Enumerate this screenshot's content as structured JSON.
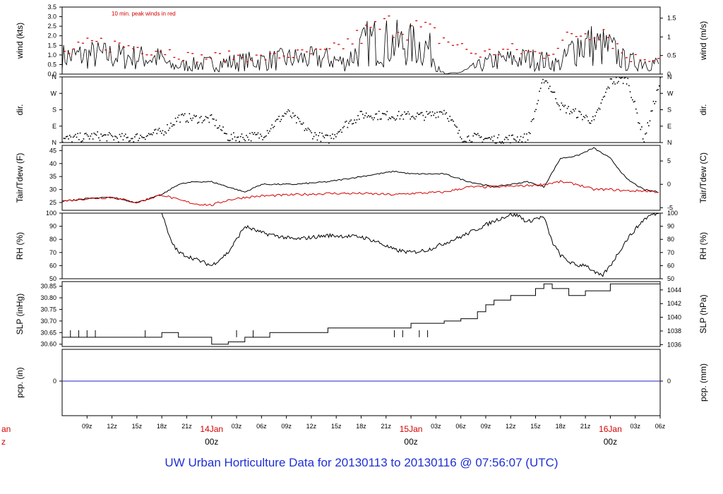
{
  "caption": "UW Urban Horticulture Data for 20130113  to  20130116 @ 07:56:07  (UTC)",
  "colors": {
    "black": "#000000",
    "red": "#d40000",
    "blue": "#2222cc",
    "axis": "#000000"
  },
  "x_axis": {
    "start_hours": 6,
    "end_hours": 78,
    "hour_ticks": [
      "09z",
      "12z",
      "15z",
      "18z",
      "21z",
      "03z",
      "06z",
      "09z",
      "12z",
      "15z",
      "18z",
      "21z",
      "03z",
      "06z",
      "09z",
      "12z",
      "15z",
      "18z",
      "21z",
      "03z",
      "06z"
    ],
    "hour_tick_values": [
      9,
      12,
      15,
      18,
      21,
      27,
      30,
      33,
      36,
      39,
      42,
      45,
      51,
      54,
      57,
      60,
      63,
      66,
      69,
      75,
      78
    ],
    "date_ticks": [
      {
        "date": "14Jan",
        "time": "00z",
        "value": 24
      },
      {
        "date": "15Jan",
        "time": "00z",
        "value": 48
      },
      {
        "date": "16Jan",
        "time": "00z",
        "value": 72
      }
    ],
    "partial_left_label": {
      "date": "an",
      "time": "z"
    }
  },
  "chart_data": [
    {
      "type": "line",
      "panel": "wind",
      "ylabel_left": "wind (kts)",
      "ylabel_right": "wind (m/s)",
      "annotation": "10 min. peak winds in red",
      "ylim": [
        0,
        3.5
      ],
      "left_ticks": [
        "0.0",
        "0.5",
        "1.0",
        "1.5",
        "2.0",
        "2.5",
        "3.0",
        "3.5"
      ],
      "right_ticks": [
        "0",
        "0.5",
        "1",
        "1.5"
      ],
      "right_tick_values_kts": [
        0,
        0.97,
        1.94,
        2.92
      ],
      "series": [
        {
          "name": "wind",
          "color": "#000000",
          "x": [
            6,
            10,
            14,
            18,
            19,
            22,
            26,
            30,
            34,
            38,
            40,
            43,
            46,
            50,
            52,
            54,
            58,
            62,
            64,
            66,
            68,
            70,
            72,
            74,
            76,
            78
          ],
          "values": [
            0.9,
            1.0,
            0.9,
            0.8,
            0.4,
            0.5,
            0.6,
            0.7,
            0.8,
            0.8,
            0.6,
            1.7,
            1.6,
            1.4,
            0.0,
            0.1,
            0.7,
            0.8,
            0.7,
            0.5,
            1.6,
            1.5,
            1.3,
            0.6,
            0.7,
            0.5
          ]
        },
        {
          "name": "peak",
          "color": "#d40000",
          "x": [
            6,
            10,
            14,
            18,
            22,
            26,
            30,
            34,
            38,
            43,
            46,
            50,
            56,
            60,
            64,
            68,
            71,
            74,
            78
          ],
          "values": [
            1.2,
            1.9,
            1.7,
            1.5,
            1.0,
            1.1,
            1.0,
            1.2,
            1.3,
            2.6,
            3.1,
            2.6,
            1.2,
            1.5,
            1.2,
            2.5,
            2.9,
            1.0,
            1.0
          ]
        }
      ]
    },
    {
      "type": "scatter",
      "panel": "direction",
      "ylabel_left": "dir.",
      "ylabel_right": "dir.",
      "ylim": [
        0,
        360
      ],
      "ticks": [
        "N",
        "E",
        "S",
        "W",
        "N"
      ],
      "tick_values": [
        0,
        90,
        180,
        270,
        360
      ]
    },
    {
      "type": "line",
      "panel": "temperature",
      "ylabel_left": "Tair/Tdew (F)",
      "ylabel_right": "Tair/Tdew (C)",
      "ylim": [
        22,
        47
      ],
      "left_ticks": [
        "25",
        "30",
        "35",
        "40",
        "45"
      ],
      "right_ticks": [
        "-5",
        "0",
        "5"
      ],
      "right_tick_values_f": [
        23,
        32,
        41
      ],
      "series": [
        {
          "name": "Tair",
          "color": "#000000",
          "x": [
            6,
            9,
            12,
            15,
            18,
            20,
            22,
            24,
            26,
            28,
            30,
            34,
            38,
            42,
            46,
            48,
            52,
            55,
            58,
            62,
            64,
            66,
            68,
            70,
            72,
            74,
            76,
            78
          ],
          "values": [
            25.5,
            26.5,
            27,
            25,
            28,
            32,
            33,
            33,
            31,
            29,
            32,
            32,
            33,
            35,
            37,
            36,
            36,
            33,
            31,
            33,
            31,
            42,
            43,
            46,
            42,
            34,
            30,
            29
          ]
        },
        {
          "name": "Tdew",
          "color": "#d40000",
          "x": [
            6,
            9,
            12,
            15,
            18,
            20,
            22,
            24,
            26,
            28,
            30,
            34,
            38,
            42,
            46,
            48,
            52,
            55,
            58,
            62,
            64,
            66,
            68,
            70,
            72,
            74,
            76,
            78
          ],
          "values": [
            25.5,
            26.5,
            27,
            25,
            28,
            26,
            24.5,
            24,
            26,
            27,
            27.5,
            28,
            28.5,
            28.5,
            28,
            28.5,
            29,
            31,
            31,
            31.5,
            32,
            33,
            32,
            30,
            30,
            29.5,
            29.5,
            29
          ]
        }
      ]
    },
    {
      "type": "line",
      "panel": "humidity",
      "ylabel_left": "RH (%)",
      "ylabel_right": "RH (%)",
      "ylim": [
        50,
        100
      ],
      "ticks": [
        "50",
        "60",
        "70",
        "80",
        "90",
        "100"
      ],
      "series": [
        {
          "name": "RH",
          "color": "#000000",
          "x": [
            6,
            18,
            19,
            20,
            22,
            24,
            26,
            28,
            30,
            34,
            38,
            42,
            44,
            46,
            48,
            50,
            52,
            54,
            56,
            58,
            60,
            61,
            62,
            63,
            64,
            65,
            66,
            67,
            68,
            69,
            70,
            71,
            72,
            74,
            76,
            77,
            78
          ],
          "values": [
            100,
            100,
            80,
            70,
            65,
            60,
            70,
            90,
            85,
            80,
            83,
            82,
            78,
            72,
            70,
            72,
            77,
            82,
            88,
            94,
            99,
            98,
            93,
            96,
            97,
            78,
            68,
            63,
            60,
            61,
            55,
            52,
            60,
            80,
            95,
            99,
            100
          ]
        }
      ]
    },
    {
      "type": "line",
      "panel": "pressure",
      "ylabel_left": "SLP (inHg)",
      "ylabel_right": "SLP (hPa)",
      "ylim": [
        30.59,
        30.87
      ],
      "left_ticks": [
        "30.60",
        "30.65",
        "30.70",
        "30.75",
        "30.80",
        "30.85"
      ],
      "right_ticks": [
        "1036",
        "1038",
        "1040",
        "1042",
        "1044"
      ],
      "right_tick_values_inhg": [
        30.598,
        30.657,
        30.716,
        30.775,
        30.834
      ],
      "series": [
        {
          "name": "SLP",
          "color": "#000000",
          "x": [
            6,
            12,
            18,
            20,
            24,
            26,
            28,
            31,
            38,
            43,
            46,
            48,
            50,
            52,
            54,
            56,
            57,
            58,
            60,
            63,
            64,
            65,
            67,
            69,
            72,
            78
          ],
          "values": [
            30.63,
            30.63,
            30.65,
            30.63,
            30.6,
            30.61,
            30.63,
            30.65,
            30.67,
            30.67,
            30.67,
            30.69,
            30.69,
            30.7,
            30.71,
            30.74,
            30.77,
            30.79,
            30.81,
            30.84,
            30.86,
            30.84,
            30.81,
            30.83,
            30.86,
            30.86
          ]
        }
      ]
    },
    {
      "type": "line",
      "panel": "precipitation",
      "ylabel_left": "pcp. (in)",
      "ylabel_right": "pcp. (mm)",
      "left_ticks": [
        "0"
      ],
      "right_ticks": [
        "0"
      ],
      "series": [
        {
          "name": "precip",
          "color": "#2222cc",
          "x": [
            6,
            78
          ],
          "values": [
            0,
            0
          ]
        }
      ]
    }
  ]
}
